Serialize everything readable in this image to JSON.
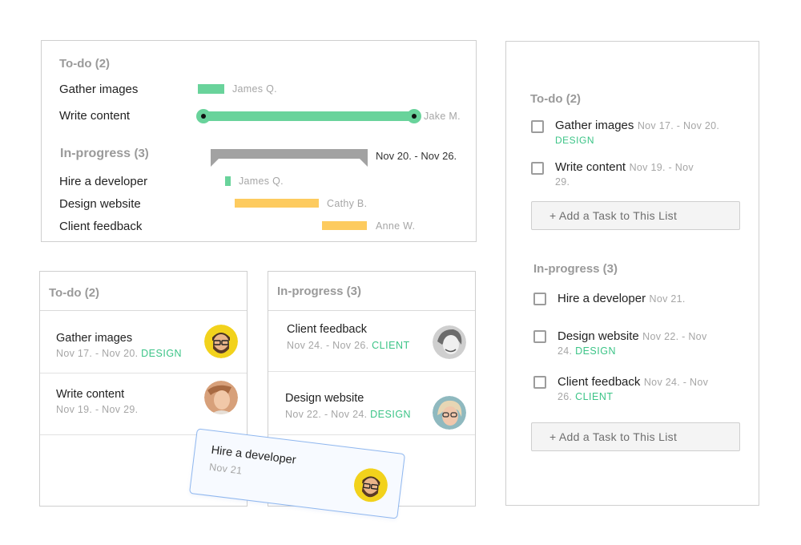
{
  "gantt": {
    "todo": {
      "title": "To-do",
      "count": "(2)"
    },
    "inprogress": {
      "title": "In-progress",
      "count": "(3)",
      "date_range": "Nov 20. - Nov 26."
    },
    "tasks": [
      {
        "name": "Gather images",
        "assignee": "James Q."
      },
      {
        "name": "Write content",
        "assignee": "Jake M."
      },
      {
        "name": "Hire a developer",
        "assignee": "James Q."
      },
      {
        "name": "Design website",
        "assignee": "Cathy B."
      },
      {
        "name": "Client feedback",
        "assignee": "Anne W."
      }
    ]
  },
  "kanban": {
    "todo": {
      "title": "To-do (2)",
      "cards": [
        {
          "name": "Gather images",
          "dates": "Nov 17. - Nov 20.",
          "tag": "DESIGN",
          "avatar": "bearded-man-avatar"
        },
        {
          "name": "Write content",
          "dates": "Nov 19. - Nov 29.",
          "tag": "",
          "avatar": "man-avatar"
        }
      ]
    },
    "inprogress": {
      "title": "In-progress (3)",
      "cards": [
        {
          "name": "Client feedback",
          "dates": "Nov 24. - Nov 26.",
          "tag": "CLIENT",
          "avatar": "woman-bw-avatar"
        },
        {
          "name": "Design website",
          "dates": "Nov 22. - Nov 24.",
          "tag": "DESIGN",
          "avatar": "woman-glasses-avatar"
        }
      ]
    },
    "dragging": {
      "name": "Hire a developer",
      "dates": "Nov 21",
      "avatar": "bearded-man-avatar"
    }
  },
  "checklist": {
    "todo": {
      "title": "To-do (2)",
      "items": [
        {
          "name": "Gather images",
          "dates_1": "Nov 17. - Nov 20.",
          "dates_2": "",
          "tag": "DESIGN"
        },
        {
          "name": "Write content",
          "dates_1": "Nov 19. - Nov",
          "dates_2": "29.",
          "tag": ""
        }
      ],
      "add_label": "+ Add a Task to This List"
    },
    "inprogress": {
      "title": "In-progress (3)",
      "items": [
        {
          "name": "Hire a developer",
          "dates_1": "Nov 21.",
          "dates_2": "",
          "tag": ""
        },
        {
          "name": "Design website",
          "dates_1": "Nov 22. - Nov",
          "dates_2": "24.",
          "tag": "DESIGN"
        },
        {
          "name": "Client feedback",
          "dates_1": "Nov 24. - Nov",
          "dates_2": "26.",
          "tag": "CLIENT"
        }
      ],
      "add_label": "+ Add a Task to This List"
    }
  },
  "colors": {
    "green": "#69d39b",
    "yellow": "#fdcb5f",
    "tag": "#3cc487",
    "border": "#cfcfcf"
  }
}
